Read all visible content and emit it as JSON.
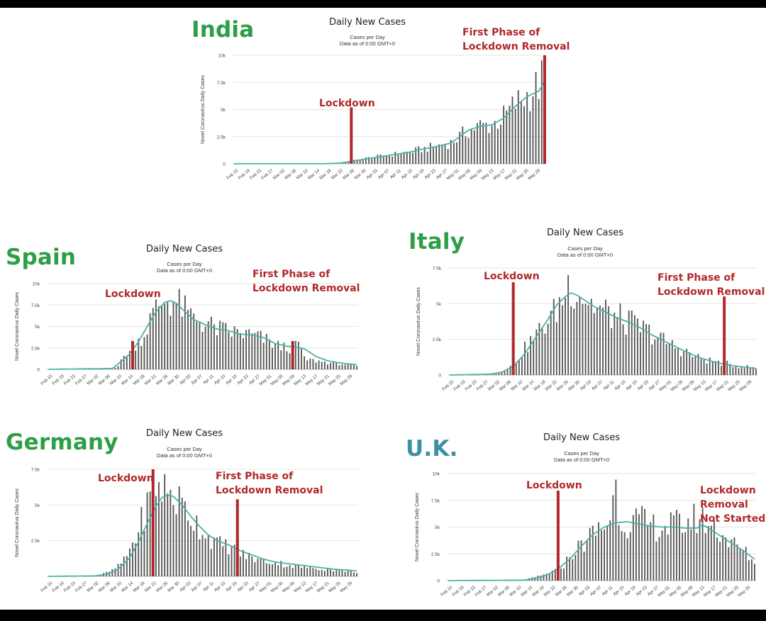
{
  "common": {
    "title": "Daily New Cases",
    "subtitle1": "Cases per Day",
    "subtitle2": "Data as of 0:00 GMT+0",
    "ylabel": "Novel Coronavirus Daily Cases"
  },
  "colors": {
    "line": "#4fb0aa",
    "bar": "#555555",
    "marker": "#b0282a",
    "country_green": "#2e9e48",
    "country_uk": "#3d8fa5"
  },
  "countries": {
    "india": {
      "name": "India"
    },
    "spain": {
      "name": "Spain"
    },
    "italy": {
      "name": "Italy"
    },
    "germany": {
      "name": "Germany"
    },
    "uk": {
      "name": "U.K."
    }
  },
  "annotations": {
    "lockdown": "Lockdown",
    "first_phase_line1": "First Phase of",
    "first_phase_line2": "Lockdown Removal",
    "uk_removal_line1": "Lockdown",
    "uk_removal_line2": "Removal",
    "uk_removal_line3": "Not Started"
  },
  "chart_data": [
    {
      "id": "india",
      "type": "bar",
      "title": "Daily New Cases",
      "ylabel": "Novel Coronavirus Daily Cases",
      "x_ticks": [
        "Feb 15",
        "Feb 19",
        "Feb 23",
        "Feb 27",
        "Mar 02",
        "Mar 06",
        "Mar 10",
        "Mar 14",
        "Mar 18",
        "Mar 22",
        "Mar 26",
        "Mar 30",
        "Apr 03",
        "Apr 07",
        "Apr 11",
        "Apr 15",
        "Apr 19",
        "Apr 23",
        "Apr 27",
        "May 01",
        "May 05",
        "May 09",
        "May 13",
        "May 17",
        "May 21",
        "May 25",
        "May 29"
      ],
      "y_ticks": [
        "0",
        "2.5k",
        "5k",
        "7.5k",
        "10k"
      ],
      "ylim": [
        0,
        10000
      ],
      "days": 107,
      "anchors": [
        [
          0,
          0
        ],
        [
          20,
          0
        ],
        [
          30,
          20
        ],
        [
          36,
          80
        ],
        [
          41,
          300
        ],
        [
          45,
          500
        ],
        [
          50,
          700
        ],
        [
          55,
          900
        ],
        [
          60,
          1100
        ],
        [
          65,
          1400
        ],
        [
          70,
          1700
        ],
        [
          74,
          1950
        ],
        [
          77,
          2500
        ],
        [
          80,
          3100
        ],
        [
          84,
          3500
        ],
        [
          88,
          3600
        ],
        [
          92,
          4300
        ],
        [
          96,
          5500
        ],
        [
          100,
          6300
        ],
        [
          104,
          7200
        ],
        [
          106,
          8300
        ]
      ],
      "line_anchors": [
        [
          0,
          0
        ],
        [
          30,
          0
        ],
        [
          36,
          60
        ],
        [
          41,
          260
        ],
        [
          45,
          450
        ],
        [
          50,
          650
        ],
        [
          55,
          860
        ],
        [
          60,
          1080
        ],
        [
          65,
          1380
        ],
        [
          70,
          1650
        ],
        [
          74,
          1900
        ],
        [
          77,
          2500
        ],
        [
          80,
          3100
        ],
        [
          84,
          3450
        ],
        [
          88,
          3600
        ],
        [
          92,
          4200
        ],
        [
          96,
          5300
        ],
        [
          100,
          6200
        ],
        [
          104,
          6700
        ],
        [
          106,
          7600
        ]
      ],
      "markers": [
        {
          "label": "Lockdown",
          "day": 40,
          "value": 5200
        },
        {
          "label": "First Phase of Lockdown Removal",
          "day": 106,
          "value": 10000
        }
      ]
    },
    {
      "id": "spain",
      "type": "bar",
      "title": "Daily New Cases",
      "ylabel": "Novel Coronavirus Daily Cases",
      "x_ticks": [
        "Feb 15",
        "Feb 19",
        "Feb 23",
        "Feb 27",
        "Mar 02",
        "Mar 06",
        "Mar 10",
        "Mar 14",
        "Mar 18",
        "Mar 22",
        "Mar 26",
        "Mar 30",
        "Apr 03",
        "Apr 07",
        "Apr 11",
        "Apr 15",
        "Apr 19",
        "Apr 23",
        "Apr 27",
        "May 01",
        "May 05",
        "May 09",
        "May 13",
        "May 17",
        "May 21",
        "May 25",
        "May 29"
      ],
      "y_ticks": [
        "0",
        "2.5k",
        "5k",
        "7.5k",
        "10k"
      ],
      "ylim": [
        0,
        10000
      ],
      "days": 107,
      "anchors": [
        [
          0,
          0
        ],
        [
          18,
          10
        ],
        [
          22,
          120
        ],
        [
          24,
          400
        ],
        [
          26,
          1500
        ],
        [
          28,
          2100
        ],
        [
          30,
          3000
        ],
        [
          33,
          4000
        ],
        [
          35,
          5800
        ],
        [
          38,
          7500
        ],
        [
          41,
          8200
        ],
        [
          44,
          7800
        ],
        [
          46,
          7200
        ],
        [
          48,
          6400
        ],
        [
          52,
          5700
        ],
        [
          56,
          5000
        ],
        [
          60,
          4500
        ],
        [
          64,
          4300
        ],
        [
          68,
          4100
        ],
        [
          72,
          3800
        ],
        [
          76,
          3200
        ],
        [
          80,
          2600
        ],
        [
          84,
          2500
        ],
        [
          86,
          3200
        ],
        [
          88,
          1200
        ],
        [
          92,
          1000
        ],
        [
          96,
          800
        ],
        [
          100,
          650
        ],
        [
          104,
          500
        ],
        [
          106,
          400
        ]
      ],
      "line_anchors": [
        [
          0,
          0
        ],
        [
          22,
          100
        ],
        [
          25,
          900
        ],
        [
          28,
          1800
        ],
        [
          31,
          3200
        ],
        [
          34,
          5000
        ],
        [
          37,
          6700
        ],
        [
          40,
          7800
        ],
        [
          42,
          8000
        ],
        [
          44,
          7700
        ],
        [
          47,
          6700
        ],
        [
          50,
          5800
        ],
        [
          54,
          5200
        ],
        [
          58,
          4700
        ],
        [
          62,
          4500
        ],
        [
          66,
          4100
        ],
        [
          70,
          4000
        ],
        [
          74,
          3700
        ],
        [
          78,
          3000
        ],
        [
          82,
          2700
        ],
        [
          85,
          2600
        ],
        [
          88,
          2400
        ],
        [
          92,
          1500
        ],
        [
          96,
          1000
        ],
        [
          100,
          750
        ],
        [
          104,
          600
        ],
        [
          106,
          550
        ]
      ],
      "markers": [
        {
          "label": "Lockdown",
          "day": 29,
          "value": 3300
        },
        {
          "label": "First Phase of Lockdown Removal",
          "day": 84,
          "value": 3300
        }
      ]
    },
    {
      "id": "italy",
      "type": "bar",
      "title": "Daily New Cases",
      "ylabel": "Novel Coronavirus Daily Cases",
      "x_ticks": [
        "Feb 15",
        "Feb 19",
        "Feb 23",
        "Feb 27",
        "Mar 02",
        "Mar 06",
        "Mar 10",
        "Mar 14",
        "Mar 18",
        "Mar 22",
        "Mar 26",
        "Mar 30",
        "Apr 03",
        "Apr 07",
        "Apr 11",
        "Apr 15",
        "Apr 19",
        "Apr 23",
        "Apr 27",
        "May 01",
        "May 05",
        "May 09",
        "May 13",
        "May 17",
        "May 21",
        "May 25",
        "May 29"
      ],
      "y_ticks": [
        "0",
        "2.5k",
        "5k",
        "7.5k"
      ],
      "ylim": [
        0,
        7500
      ],
      "days": 107,
      "anchors": [
        [
          0,
          0
        ],
        [
          10,
          5
        ],
        [
          14,
          60
        ],
        [
          18,
          250
        ],
        [
          21,
          600
        ],
        [
          24,
          1300
        ],
        [
          27,
          2100
        ],
        [
          30,
          2800
        ],
        [
          33,
          3600
        ],
        [
          36,
          4300
        ],
        [
          39,
          5300
        ],
        [
          41,
          6400
        ],
        [
          43,
          6200
        ],
        [
          45,
          5800
        ],
        [
          48,
          5200
        ],
        [
          51,
          4700
        ],
        [
          54,
          4400
        ],
        [
          58,
          4000
        ],
        [
          62,
          3700
        ],
        [
          66,
          3300
        ],
        [
          70,
          2900
        ],
        [
          74,
          2400
        ],
        [
          78,
          2000
        ],
        [
          82,
          1600
        ],
        [
          86,
          1200
        ],
        [
          90,
          1000
        ],
        [
          94,
          850
        ],
        [
          98,
          700
        ],
        [
          102,
          600
        ],
        [
          106,
          450
        ]
      ],
      "line_anchors": [
        [
          0,
          0
        ],
        [
          14,
          60
        ],
        [
          18,
          200
        ],
        [
          22,
          600
        ],
        [
          26,
          1500
        ],
        [
          30,
          2700
        ],
        [
          34,
          3900
        ],
        [
          37,
          4900
        ],
        [
          40,
          5500
        ],
        [
          42,
          5750
        ],
        [
          44,
          5600
        ],
        [
          47,
          5200
        ],
        [
          50,
          4800
        ],
        [
          54,
          4400
        ],
        [
          58,
          4000
        ],
        [
          62,
          3700
        ],
        [
          66,
          3300
        ],
        [
          70,
          2800
        ],
        [
          74,
          2400
        ],
        [
          78,
          2000
        ],
        [
          82,
          1600
        ],
        [
          86,
          1250
        ],
        [
          90,
          1000
        ],
        [
          94,
          800
        ],
        [
          98,
          650
        ],
        [
          102,
          550
        ],
        [
          106,
          450
        ]
      ],
      "markers": [
        {
          "label": "Lockdown",
          "day": 22,
          "value": 6500
        },
        {
          "label": "First Phase of Lockdown Removal",
          "day": 95,
          "value": 5500
        }
      ]
    },
    {
      "id": "germany",
      "type": "bar",
      "title": "Daily New Cases",
      "ylabel": "Novel Coronavirus Daily Cases",
      "x_ticks": [
        "Feb 15",
        "Feb 19",
        "Feb 23",
        "Feb 27",
        "Mar 02",
        "Mar 06",
        "Mar 10",
        "Mar 14",
        "Mar 18",
        "Mar 22",
        "Mar 26",
        "Mar 30",
        "Apr 03",
        "Apr 07",
        "Apr 11",
        "Apr 15",
        "Apr 19",
        "Apr 23",
        "Apr 27",
        "May 01",
        "May 05",
        "May 09",
        "May 13",
        "May 17",
        "May 21",
        "May 25",
        "May 29"
      ],
      "y_ticks": [
        "2.5k",
        "5k",
        "7.5k"
      ],
      "ylim": [
        0,
        7500
      ],
      "days": 107,
      "anchors": [
        [
          0,
          0
        ],
        [
          14,
          10
        ],
        [
          18,
          120
        ],
        [
          22,
          400
        ],
        [
          26,
          1100
        ],
        [
          30,
          2700
        ],
        [
          33,
          4400
        ],
        [
          35,
          5500
        ],
        [
          37,
          6500
        ],
        [
          39,
          6200
        ],
        [
          41,
          6000
        ],
        [
          43,
          5600
        ],
        [
          46,
          5000
        ],
        [
          49,
          4200
        ],
        [
          52,
          3500
        ],
        [
          55,
          2800
        ],
        [
          58,
          2300
        ],
        [
          62,
          2100
        ],
        [
          66,
          1600
        ],
        [
          70,
          1300
        ],
        [
          74,
          1100
        ],
        [
          78,
          1000
        ],
        [
          82,
          800
        ],
        [
          86,
          700
        ],
        [
          90,
          600
        ],
        [
          94,
          550
        ],
        [
          98,
          450
        ],
        [
          102,
          400
        ],
        [
          106,
          300
        ]
      ],
      "line_anchors": [
        [
          0,
          0
        ],
        [
          16,
          30
        ],
        [
          20,
          150
        ],
        [
          24,
          500
        ],
        [
          28,
          1300
        ],
        [
          31,
          2400
        ],
        [
          34,
          3700
        ],
        [
          37,
          4900
        ],
        [
          39,
          5500
        ],
        [
          41,
          5700
        ],
        [
          43,
          5600
        ],
        [
          46,
          5000
        ],
        [
          49,
          4200
        ],
        [
          52,
          3500
        ],
        [
          55,
          2900
        ],
        [
          58,
          2500
        ],
        [
          62,
          2200
        ],
        [
          66,
          1800
        ],
        [
          70,
          1500
        ],
        [
          74,
          1200
        ],
        [
          78,
          1000
        ],
        [
          82,
          900
        ],
        [
          86,
          800
        ],
        [
          90,
          700
        ],
        [
          94,
          600
        ],
        [
          98,
          500
        ],
        [
          102,
          450
        ],
        [
          106,
          380
        ]
      ],
      "markers": [
        {
          "label": "Lockdown",
          "day": 36,
          "value": 7500
        },
        {
          "label": "First Phase of Lockdown Removal",
          "day": 65,
          "value": 5400
        }
      ]
    },
    {
      "id": "uk",
      "type": "bar",
      "title": "Daily New Cases",
      "ylabel": "Novel Coronavirus Daily Cases",
      "x_ticks": [
        "Feb 15",
        "Feb 19",
        "Feb 23",
        "Feb 27",
        "Mar 02",
        "Mar 06",
        "Mar 10",
        "Mar 14",
        "Mar 18",
        "Mar 22",
        "Mar 26",
        "Mar 30",
        "Apr 03",
        "Apr 07",
        "Apr 11",
        "Apr 15",
        "Apr 19",
        "Apr 23",
        "Apr 27",
        "May 01",
        "May 05",
        "May 09",
        "May 13",
        "May 17",
        "May 21",
        "May 25",
        "May 29"
      ],
      "y_ticks": [
        "0",
        "2.5k",
        "5k",
        "7.5k",
        "10k"
      ],
      "ylim": [
        0,
        10000
      ],
      "days": 107,
      "anchors": [
        [
          0,
          0
        ],
        [
          20,
          5
        ],
        [
          26,
          60
        ],
        [
          30,
          300
        ],
        [
          34,
          600
        ],
        [
          37,
          900
        ],
        [
          40,
          1500
        ],
        [
          43,
          2600
        ],
        [
          46,
          3300
        ],
        [
          49,
          4100
        ],
        [
          52,
          4800
        ],
        [
          55,
          5200
        ],
        [
          58,
          8600
        ],
        [
          60,
          5400
        ],
        [
          63,
          5500
        ],
        [
          66,
          5600
        ],
        [
          70,
          5100
        ],
        [
          74,
          5000
        ],
        [
          78,
          5200
        ],
        [
          82,
          5300
        ],
        [
          86,
          5900
        ],
        [
          90,
          5400
        ],
        [
          94,
          4600
        ],
        [
          98,
          3500
        ],
        [
          102,
          2800
        ],
        [
          106,
          1800
        ]
      ],
      "line_anchors": [
        [
          0,
          0
        ],
        [
          26,
          40
        ],
        [
          30,
          200
        ],
        [
          34,
          500
        ],
        [
          38,
          1100
        ],
        [
          42,
          2000
        ],
        [
          46,
          3200
        ],
        [
          50,
          4300
        ],
        [
          54,
          5000
        ],
        [
          58,
          5400
        ],
        [
          62,
          5500
        ],
        [
          66,
          5300
        ],
        [
          70,
          5100
        ],
        [
          74,
          5000
        ],
        [
          78,
          5000
        ],
        [
          82,
          4900
        ],
        [
          86,
          4900
        ],
        [
          88,
          5200
        ],
        [
          90,
          4900
        ],
        [
          94,
          4200
        ],
        [
          98,
          3500
        ],
        [
          102,
          2800
        ],
        [
          106,
          2000
        ]
      ],
      "markers": [
        {
          "label": "Lockdown",
          "day": 38,
          "value": 8400
        }
      ]
    }
  ]
}
